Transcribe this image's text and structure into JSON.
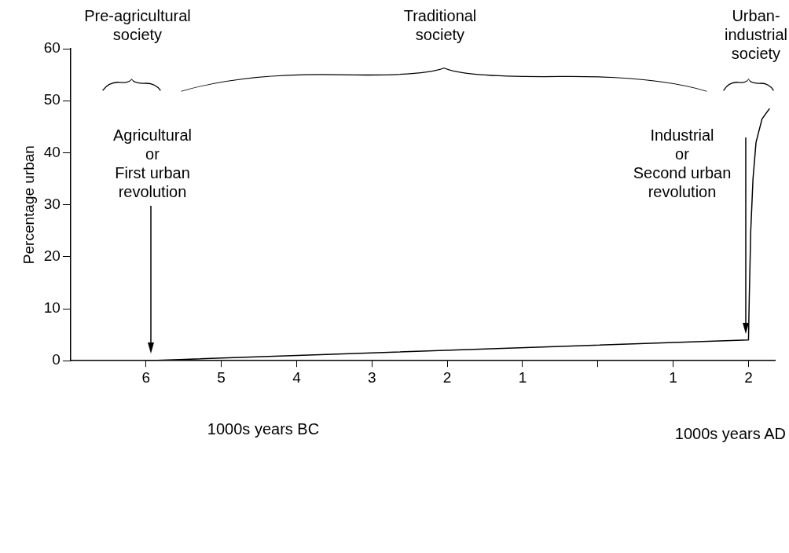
{
  "chart_data": {
    "type": "line",
    "xlabel": "1000s years BC",
    "ylabel": "Percentage urban",
    "x": [
      -6,
      2.0,
      2.01,
      2.03,
      2.06,
      2.1,
      2.18,
      2.28
    ],
    "series": [
      {
        "color": "#000000",
        "values": [
          0,
          4,
          12,
          25,
          35,
          42,
          46.5,
          48.5
        ]
      }
    ],
    "xlim": [
      -7,
      2.35
    ],
    "ylim": [
      0,
      60
    ],
    "xticks": [
      {
        "value": -6,
        "label": "6"
      },
      {
        "value": -5,
        "label": "5"
      },
      {
        "value": -4,
        "label": "4"
      },
      {
        "value": -3,
        "label": "3"
      },
      {
        "value": -2,
        "label": "2"
      },
      {
        "value": -1,
        "label": "1"
      },
      {
        "value": 0,
        "label": null
      },
      {
        "value": 1,
        "label": "1"
      },
      {
        "value": 2,
        "label": "2"
      }
    ],
    "yticks": [
      0,
      10,
      20,
      30,
      40,
      50,
      60
    ],
    "grid": false,
    "legend": false,
    "marker": "none",
    "line_style": "solid",
    "annotations": [
      "Pre-agricultural\nsociety",
      "Traditional\nsociety",
      "Urban-\nindustrial\nsociety",
      "Agricultural\nor\nFirst urban\nrevolution",
      "Industrial\nor\nSecond urban\nrevolution",
      "1000s years AD"
    ]
  }
}
